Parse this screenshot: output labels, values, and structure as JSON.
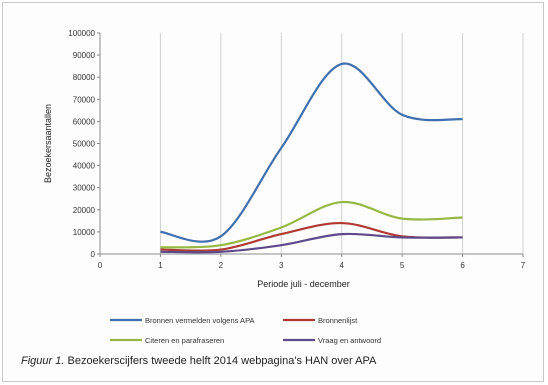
{
  "caption": {
    "label": "Figuur 1.",
    "text": "Bezoekerscijfers tweede helft 2014 webpagina's HAN over APA"
  },
  "chart_data": {
    "type": "line",
    "title": "",
    "xlabel": "Periode juli - december",
    "ylabel": "Bezoekersaantallen",
    "xlim": [
      0,
      7
    ],
    "ylim": [
      0,
      100000
    ],
    "x_ticks": [
      0,
      1,
      2,
      3,
      4,
      5,
      6,
      7
    ],
    "y_ticks": [
      0,
      10000,
      20000,
      30000,
      40000,
      50000,
      60000,
      70000,
      80000,
      90000,
      100000
    ],
    "grid": "vertical",
    "legend_position": "bottom",
    "x": [
      1,
      2,
      3,
      4,
      5,
      6
    ],
    "series": [
      {
        "name": "Bronnen vermelden volgens APA",
        "color": "#3f6fae",
        "values": [
          10000,
          8000,
          48000,
          86000,
          63000,
          61000
        ]
      },
      {
        "name": "Bronnenlijst",
        "color": "#b03a32",
        "values": [
          2000,
          2000,
          9000,
          14000,
          8000,
          7500
        ]
      },
      {
        "name": "Citeren en parafraseren",
        "color": "#96b843",
        "values": [
          3000,
          4000,
          12000,
          23500,
          16000,
          16500
        ]
      },
      {
        "name": "Vraag en antwoord",
        "color": "#5d4a8a",
        "values": [
          1000,
          1000,
          4000,
          9000,
          7500,
          7500
        ]
      }
    ]
  }
}
